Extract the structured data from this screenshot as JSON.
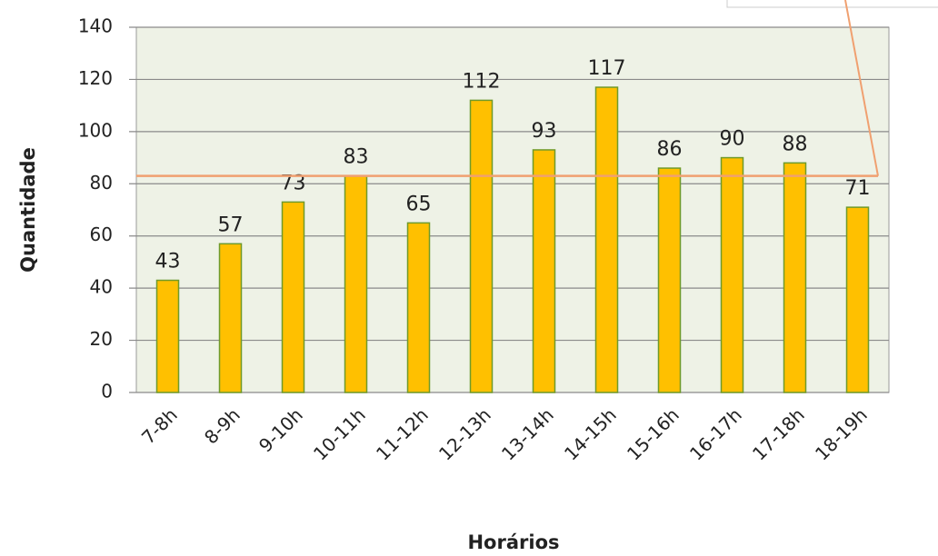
{
  "chart_data": {
    "type": "bar",
    "x_label": "Horários",
    "y_label": "Quantidade",
    "categories": [
      "7-8h",
      "8-9h",
      "9-10h",
      "10-11h",
      "11-12h",
      "12-13h",
      "13-14h",
      "14-15h",
      "15-16h",
      "16-17h",
      "17-18h",
      "18-19h"
    ],
    "values": [
      43,
      57,
      73,
      83,
      65,
      112,
      93,
      117,
      86,
      90,
      88,
      71
    ],
    "color": "#ffc000",
    "reference_line": 83,
    "reference_color": "#f0a070",
    "ylim": [
      0,
      140
    ],
    "yticks": [
      0,
      20,
      40,
      60,
      80,
      100,
      120,
      140
    ],
    "grid": true
  }
}
